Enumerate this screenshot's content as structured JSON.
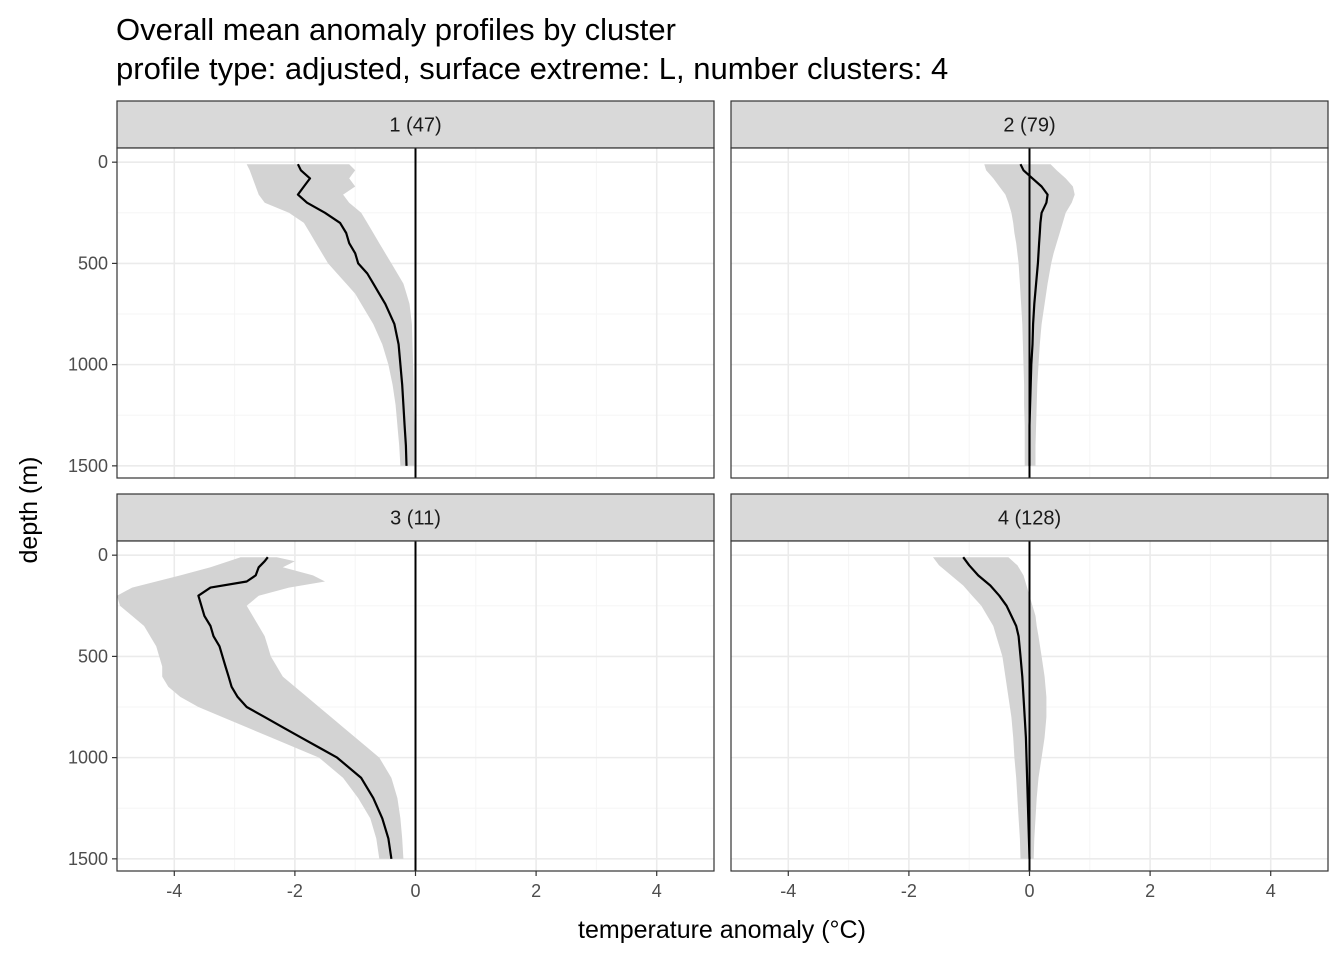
{
  "title": "Overall mean anomaly profiles by cluster",
  "subtitle": "profile type: adjusted, surface extreme: L, number clusters: 4",
  "colors": {
    "background": "#ffffff",
    "strip_fill": "#d9d9d9",
    "strip_border": "#333333",
    "panel_border": "#333333",
    "grid_major": "#ebebeb",
    "grid_minor": "#f5f5f5",
    "ribbon": "#d3d3d3",
    "mean_line": "#000000",
    "zero_line": "#000000",
    "tick_label": "#4d4d4d"
  },
  "chart_data": {
    "type": "line",
    "facet_layout": "2x2 grid, shared axes",
    "xlabel": "temperature anomaly (°C)",
    "ylabel": "depth (m)",
    "xlim": [
      -4.95,
      4.95
    ],
    "ylim": [
      1560,
      -70
    ],
    "y_reversed": true,
    "x_ticks": [
      -4,
      -2,
      0,
      2,
      4
    ],
    "x_tick_labels": [
      "-4",
      "-2",
      "0",
      "2",
      "4"
    ],
    "y_ticks": [
      0,
      500,
      1000,
      1500
    ],
    "y_tick_labels": [
      "0",
      "500",
      "1000",
      "1500"
    ],
    "grid": true,
    "vline_x": 0,
    "panels": [
      {
        "label": "1 (47)",
        "depth": [
          10,
          40,
          80,
          120,
          160,
          200,
          250,
          300,
          350,
          400,
          450,
          500,
          550,
          600,
          650,
          700,
          800,
          900,
          1000,
          1100,
          1200,
          1300,
          1400,
          1500
        ],
        "mean": [
          -1.95,
          -1.9,
          -1.75,
          -1.85,
          -1.95,
          -1.8,
          -1.5,
          -1.25,
          -1.15,
          -1.1,
          -1.0,
          -0.95,
          -0.8,
          -0.7,
          -0.6,
          -0.5,
          -0.35,
          -0.28,
          -0.25,
          -0.22,
          -0.2,
          -0.18,
          -0.16,
          -0.15
        ],
        "lower": [
          -2.8,
          -2.75,
          -2.7,
          -2.65,
          -2.6,
          -2.5,
          -2.1,
          -1.85,
          -1.75,
          -1.65,
          -1.55,
          -1.45,
          -1.3,
          -1.15,
          -1.0,
          -0.9,
          -0.7,
          -0.55,
          -0.45,
          -0.38,
          -0.33,
          -0.3,
          -0.27,
          -0.25
        ],
        "upper": [
          -1.1,
          -1.0,
          -1.1,
          -1.0,
          -1.2,
          -1.1,
          -0.9,
          -0.8,
          -0.7,
          -0.6,
          -0.5,
          -0.4,
          -0.3,
          -0.2,
          -0.15,
          -0.1,
          -0.06,
          -0.05,
          -0.04,
          -0.03,
          -0.03,
          -0.02,
          -0.02,
          -0.02
        ]
      },
      {
        "label": "2 (79)",
        "depth": [
          10,
          40,
          80,
          120,
          160,
          200,
          250,
          300,
          350,
          400,
          450,
          500,
          600,
          700,
          800,
          900,
          1000,
          1100,
          1200,
          1300,
          1400,
          1500
        ],
        "mean": [
          -0.15,
          -0.1,
          0.05,
          0.2,
          0.3,
          0.28,
          0.2,
          0.18,
          0.17,
          0.16,
          0.15,
          0.14,
          0.11,
          0.08,
          0.06,
          0.05,
          0.03,
          0.02,
          0.01,
          0.0,
          0.0,
          0.0
        ],
        "lower": [
          -0.75,
          -0.72,
          -0.6,
          -0.5,
          -0.4,
          -0.35,
          -0.3,
          -0.27,
          -0.25,
          -0.22,
          -0.2,
          -0.18,
          -0.16,
          -0.14,
          -0.12,
          -0.11,
          -0.1,
          -0.09,
          -0.09,
          -0.08,
          -0.08,
          -0.08
        ],
        "upper": [
          0.35,
          0.45,
          0.6,
          0.72,
          0.75,
          0.7,
          0.6,
          0.55,
          0.5,
          0.45,
          0.4,
          0.36,
          0.3,
          0.25,
          0.2,
          0.17,
          0.15,
          0.13,
          0.12,
          0.11,
          0.1,
          0.1
        ]
      },
      {
        "label": "3 (11)",
        "depth": [
          10,
          30,
          60,
          100,
          130,
          160,
          200,
          250,
          300,
          350,
          400,
          450,
          500,
          550,
          600,
          650,
          700,
          750,
          800,
          850,
          900,
          950,
          1000,
          1100,
          1200,
          1300,
          1400,
          1500
        ],
        "mean": [
          -2.45,
          -2.5,
          -2.6,
          -2.65,
          -2.8,
          -3.4,
          -3.6,
          -3.55,
          -3.5,
          -3.4,
          -3.35,
          -3.25,
          -3.2,
          -3.15,
          -3.1,
          -3.05,
          -2.95,
          -2.8,
          -2.5,
          -2.2,
          -1.9,
          -1.6,
          -1.3,
          -0.9,
          -0.7,
          -0.55,
          -0.45,
          -0.4
        ],
        "lower": [
          -2.9,
          -3.1,
          -3.4,
          -3.9,
          -4.3,
          -4.7,
          -4.95,
          -4.9,
          -4.7,
          -4.5,
          -4.4,
          -4.3,
          -4.25,
          -4.2,
          -4.2,
          -4.1,
          -3.9,
          -3.6,
          -3.2,
          -2.8,
          -2.4,
          -2.0,
          -1.6,
          -1.2,
          -0.95,
          -0.75,
          -0.65,
          -0.6
        ],
        "upper": [
          -2.3,
          -2.0,
          -2.2,
          -1.7,
          -1.5,
          -2.1,
          -2.6,
          -2.8,
          -2.7,
          -2.6,
          -2.5,
          -2.45,
          -2.4,
          -2.3,
          -2.2,
          -2.0,
          -1.8,
          -1.6,
          -1.4,
          -1.2,
          -1.0,
          -0.8,
          -0.6,
          -0.4,
          -0.3,
          -0.25,
          -0.22,
          -0.2
        ]
      },
      {
        "label": "4 (128)",
        "depth": [
          10,
          50,
          100,
          150,
          200,
          250,
          300,
          350,
          400,
          500,
          600,
          700,
          800,
          900,
          1000,
          1100,
          1200,
          1300,
          1400,
          1500
        ],
        "mean": [
          -1.1,
          -1.0,
          -0.85,
          -0.65,
          -0.5,
          -0.38,
          -0.3,
          -0.22,
          -0.18,
          -0.15,
          -0.12,
          -0.1,
          -0.08,
          -0.06,
          -0.05,
          -0.04,
          -0.03,
          -0.02,
          -0.01,
          0.0
        ],
        "lower": [
          -1.6,
          -1.5,
          -1.3,
          -1.1,
          -0.95,
          -0.8,
          -0.7,
          -0.6,
          -0.55,
          -0.45,
          -0.4,
          -0.35,
          -0.3,
          -0.27,
          -0.25,
          -0.22,
          -0.2,
          -0.18,
          -0.16,
          -0.15
        ],
        "upper": [
          -0.35,
          -0.2,
          -0.1,
          -0.05,
          0.0,
          0.05,
          0.1,
          0.12,
          0.15,
          0.2,
          0.25,
          0.28,
          0.28,
          0.25,
          0.2,
          0.15,
          0.12,
          0.1,
          0.08,
          0.07
        ]
      }
    ]
  }
}
